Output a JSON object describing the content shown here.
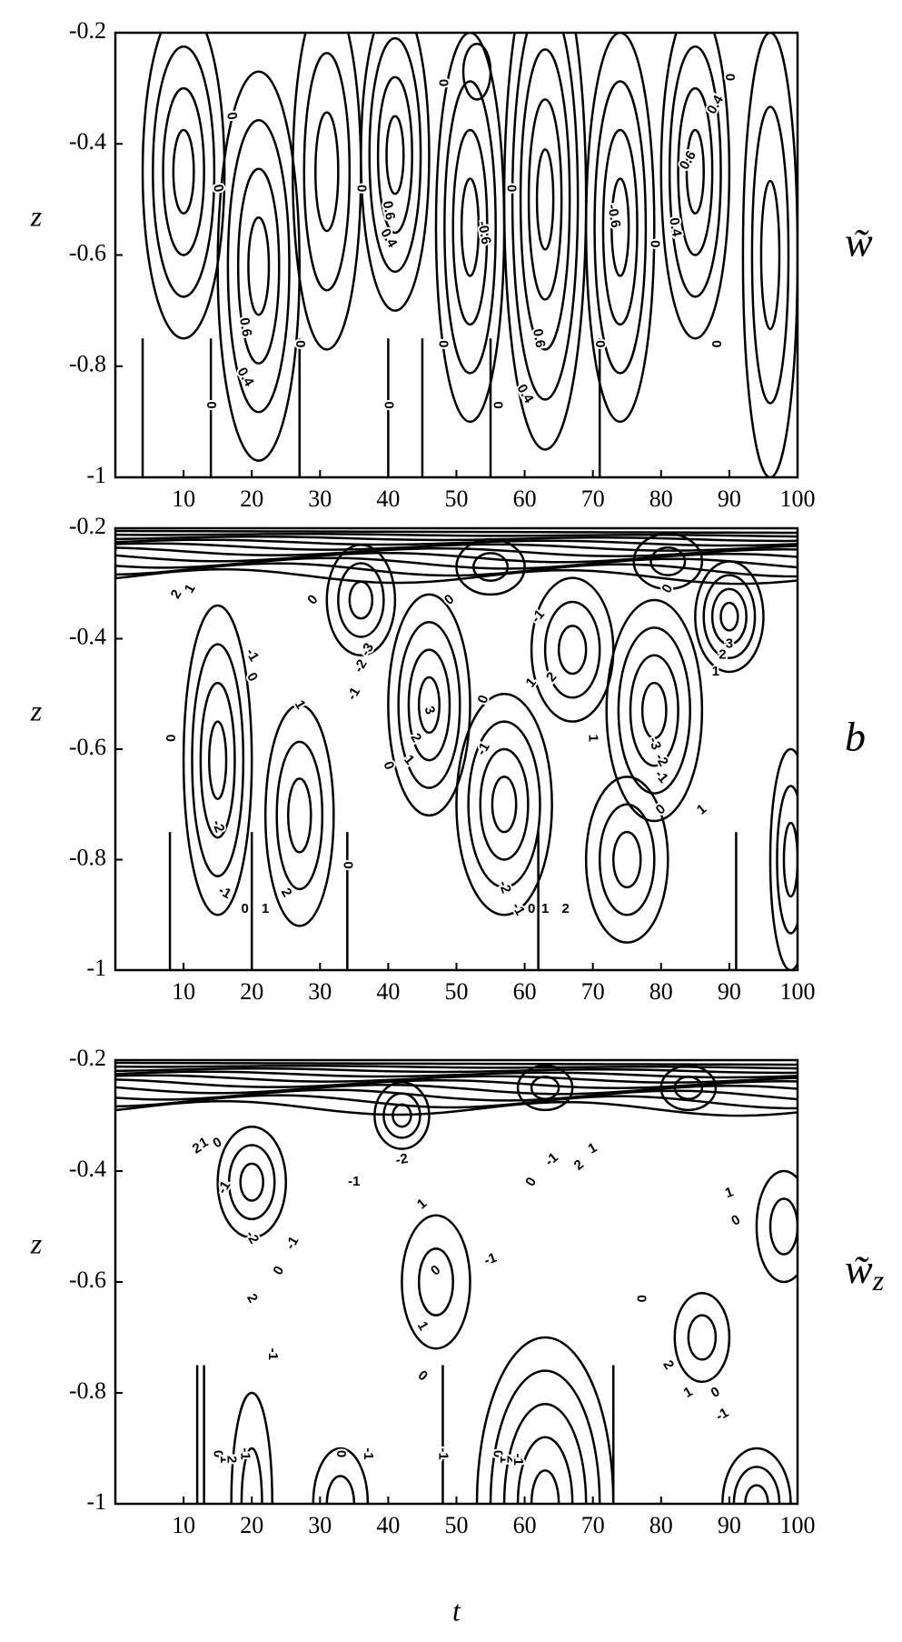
{
  "chart_data": [
    {
      "type": "contour",
      "ylabel": "z",
      "side_label": "w̃",
      "xlim": [
        0,
        100
      ],
      "xticks": [
        10,
        20,
        30,
        40,
        50,
        60,
        70,
        80,
        90,
        100
      ],
      "ylim": [
        -1,
        -0.2
      ],
      "yticks": [
        -1,
        -0.8,
        -0.6,
        -0.4,
        -0.2
      ],
      "contour_labels": [
        0,
        0,
        0,
        0.6,
        0.4,
        0,
        0,
        0.6,
        0.4,
        0,
        0,
        0,
        0,
        0,
        -0.6,
        0.6,
        0.4,
        0,
        -0.6,
        0,
        0.4,
        0.6,
        0.4,
        0,
        0
      ]
    },
    {
      "type": "contour",
      "ylabel": "z",
      "side_label": "b",
      "xlim": [
        0,
        100
      ],
      "xticks": [
        10,
        20,
        30,
        40,
        50,
        60,
        70,
        80,
        90,
        100
      ],
      "ylim": [
        -1,
        -0.2
      ],
      "yticks": [
        -1,
        -0.8,
        -0.6,
        -0.4,
        -0.2
      ],
      "contour_labels": [
        2,
        1,
        0,
        -1,
        0,
        1,
        0,
        -2,
        -1,
        0,
        1,
        2,
        0,
        -3,
        -2,
        -1,
        3,
        2,
        1,
        0,
        0,
        -1,
        0,
        -1,
        -2,
        -1,
        0,
        1,
        2,
        1,
        2,
        1,
        0,
        3,
        2,
        1,
        -3,
        -2,
        -1,
        0,
        1
      ]
    },
    {
      "type": "contour",
      "ylabel": "z",
      "xlabel": "t",
      "side_label": "w̃",
      "side_label_sub": "z",
      "xlim": [
        0,
        100
      ],
      "xticks": [
        10,
        20,
        30,
        40,
        50,
        60,
        70,
        80,
        90,
        100
      ],
      "ylim": [
        -1,
        -0.2
      ],
      "yticks": [
        -1,
        -0.8,
        -0.6,
        -0.4,
        -0.2
      ],
      "contour_labels": [
        2,
        1,
        0,
        -1,
        -2,
        -1,
        0,
        1,
        -1,
        -2,
        0,
        -1,
        -1,
        0,
        1,
        2,
        1,
        0,
        0,
        2,
        1,
        0,
        -1,
        2,
        1,
        0,
        -1,
        0,
        1,
        2,
        -1,
        0,
        -1,
        -1,
        0,
        1,
        2,
        -1
      ]
    }
  ]
}
